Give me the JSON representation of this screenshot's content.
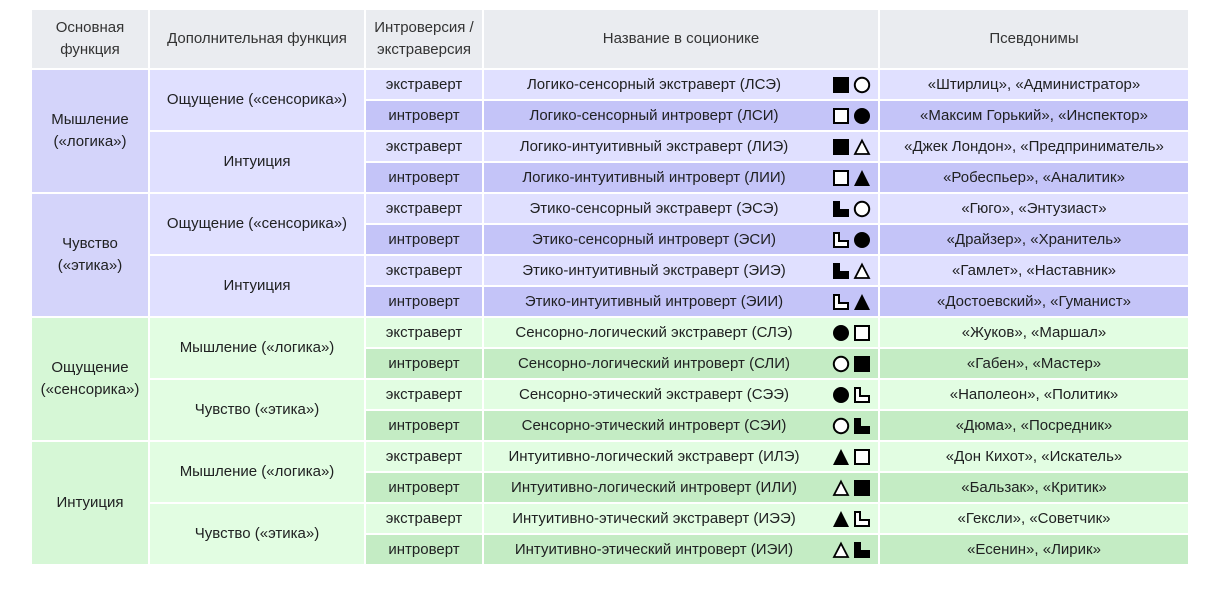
{
  "colors": {
    "header_bg": "#eaecf0",
    "logic_light": "#e0e0ff",
    "logic_dark": "#c4c4f8",
    "logic_group": "#d4d4fa",
    "sensory_light": "#e2fde2",
    "sensory_dark": "#c4ecc4",
    "sensory_group": "#d6f7d6",
    "text": "#202122"
  },
  "headers": {
    "main": "Основная функция",
    "aux": "Дополнительная функция",
    "vert": "Интроверсия / экстраверсия",
    "name": "Название в соционике",
    "aliases": "Псевдонимы"
  },
  "groups": [
    {
      "main": "Мышление («логика»)",
      "theme": "logic",
      "subgroups": [
        {
          "aux": "Ощущение («сенсорика»)",
          "rows": [
            {
              "vert": "экстраверт",
              "name": "Логико-сенсорный экстраверт (ЛСЭ)",
              "symbols": [
                "logic-black-square-icon",
                "sensory-white-circle-icon"
              ],
              "aliases": "«Штирлиц», «Администратор»"
            },
            {
              "vert": "интроверт",
              "name": "Логико-сенсорный интроверт (ЛСИ)",
              "symbols": [
                "logic-white-square-icon",
                "sensory-black-circle-icon"
              ],
              "aliases": "«Максим Горький», «Инспектор»"
            }
          ]
        },
        {
          "aux": "Интуиция",
          "rows": [
            {
              "vert": "экстраверт",
              "name": "Логико-интуитивный экстраверт (ЛИЭ)",
              "symbols": [
                "logic-black-square-icon",
                "intuition-white-triangle-icon"
              ],
              "aliases": "«Джек Лондон», «Предприниматель»"
            },
            {
              "vert": "интроверт",
              "name": "Логико-интуитивный интроверт (ЛИИ)",
              "symbols": [
                "logic-white-square-icon",
                "intuition-black-triangle-icon"
              ],
              "aliases": "«Робеспьер», «Аналитик»"
            }
          ]
        }
      ]
    },
    {
      "main": "Чувство («этика»)",
      "theme": "logic",
      "subgroups": [
        {
          "aux": "Ощущение («сенсорика»)",
          "rows": [
            {
              "vert": "экстраверт",
              "name": "Этико-сенсорный экстраверт (ЭСЭ)",
              "symbols": [
                "ethics-black-l-icon",
                "sensory-white-circle-icon"
              ],
              "aliases": "«Гюго», «Энтузиаст»"
            },
            {
              "vert": "интроверт",
              "name": "Этико-сенсорный интроверт (ЭСИ)",
              "symbols": [
                "ethics-white-l-icon",
                "sensory-black-circle-icon"
              ],
              "aliases": "«Драйзер», «Хранитель»"
            }
          ]
        },
        {
          "aux": "Интуиция",
          "rows": [
            {
              "vert": "экстраверт",
              "name": "Этико-интуитивный экстраверт (ЭИЭ)",
              "symbols": [
                "ethics-black-l-icon",
                "intuition-white-triangle-icon"
              ],
              "aliases": "«Гамлет», «Наставник»"
            },
            {
              "vert": "интроверт",
              "name": "Этико-интуитивный интроверт (ЭИИ)",
              "symbols": [
                "ethics-white-l-icon",
                "intuition-black-triangle-icon"
              ],
              "aliases": "«Достоевский», «Гуманист»"
            }
          ]
        }
      ]
    },
    {
      "main": "Ощущение («сенсорика»)",
      "theme": "sensory",
      "subgroups": [
        {
          "aux": "Мышление («логика»)",
          "rows": [
            {
              "vert": "экстраверт",
              "name": "Сенсорно-логический экстраверт (СЛЭ)",
              "symbols": [
                "sensory-black-circle-icon",
                "logic-white-square-icon"
              ],
              "aliases": "«Жуков», «Маршал»"
            },
            {
              "vert": "интроверт",
              "name": "Сенсорно-логический интроверт (СЛИ)",
              "symbols": [
                "sensory-white-circle-icon",
                "logic-black-square-icon"
              ],
              "aliases": "«Габен», «Мастер»"
            }
          ]
        },
        {
          "aux": "Чувство («этика»)",
          "rows": [
            {
              "vert": "экстраверт",
              "name": "Сенсорно-этический экстраверт (СЭЭ)",
              "symbols": [
                "sensory-black-circle-icon",
                "ethics-white-l-icon"
              ],
              "aliases": "«Наполеон», «Политик»"
            },
            {
              "vert": "интроверт",
              "name": "Сенсорно-этический интроверт (СЭИ)",
              "symbols": [
                "sensory-white-circle-icon",
                "ethics-black-l-icon"
              ],
              "aliases": "«Дюма», «Посредник»"
            }
          ]
        }
      ]
    },
    {
      "main": "Интуиция",
      "theme": "sensory",
      "subgroups": [
        {
          "aux": "Мышление («логика»)",
          "rows": [
            {
              "vert": "экстраверт",
              "name": "Интуитивно-логический экстраверт (ИЛЭ)",
              "symbols": [
                "intuition-black-triangle-icon",
                "logic-white-square-icon"
              ],
              "aliases": "«Дон Кихот», «Искатель»"
            },
            {
              "vert": "интроверт",
              "name": "Интуитивно-логический интроверт (ИЛИ)",
              "symbols": [
                "intuition-white-triangle-icon",
                "logic-black-square-icon"
              ],
              "aliases": "«Бальзак», «Критик»"
            }
          ]
        },
        {
          "aux": "Чувство («этика»)",
          "rows": [
            {
              "vert": "экстраверт",
              "name": "Интуитивно-этический экстраверт (ИЭЭ)",
              "symbols": [
                "intuition-black-triangle-icon",
                "ethics-white-l-icon"
              ],
              "aliases": "«Гексли», «Советчик»"
            },
            {
              "vert": "интроверт",
              "name": "Интуитивно-этический интроверт (ИЭИ)",
              "symbols": [
                "intuition-white-triangle-icon",
                "ethics-black-l-icon"
              ],
              "aliases": "«Есенин», «Лирик»"
            }
          ]
        }
      ]
    }
  ]
}
